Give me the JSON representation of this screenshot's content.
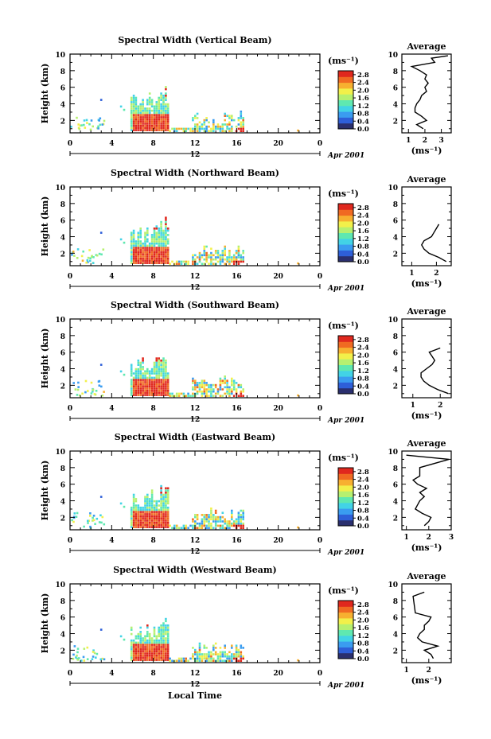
{
  "figure": {
    "xlabel": "Local Time",
    "x_ticks": [
      "0",
      "4",
      "8",
      "12",
      "16",
      "20",
      "0"
    ],
    "date_day": "12",
    "date_label": "Apr 2001",
    "y_label": "Height (km)",
    "y_ticks": [
      "2",
      "4",
      "6",
      "8",
      "10"
    ],
    "colorbar_unit": "(ms⁻¹)",
    "colorbar_ticks": [
      "0.0",
      "0.4",
      "0.8",
      "1.2",
      "1.6",
      "2.0",
      "2.4",
      "2.8"
    ],
    "average_title": "Average",
    "average_xlabel": "(ms⁻¹)"
  },
  "colors": {
    "colormap": [
      "#2a2f6e",
      "#2e5fd8",
      "#3a9cf0",
      "#42d3e6",
      "#5fe8b0",
      "#b6f070",
      "#f2f04a",
      "#f7b030",
      "#f06a22",
      "#e0281e"
    ]
  },
  "chart_data": [
    {
      "type": "heatmap",
      "title": "Spectral Width (Vertical Beam)",
      "xlim": [
        0,
        24
      ],
      "ylim": [
        0.5,
        10
      ],
      "clim": [
        0,
        3.0
      ],
      "summary_profile": {
        "type": "line",
        "title": "Average",
        "x_ticks": [
          "1",
          "2",
          "3"
        ],
        "xlim": [
          0.6,
          3.6
        ],
        "height_km": [
          1.0,
          1.5,
          2.0,
          2.5,
          3.0,
          3.5,
          4.0,
          4.5,
          5.0,
          5.5,
          6.0,
          6.5,
          7.0,
          7.5,
          8.0,
          8.5,
          9.0,
          9.5,
          9.8
        ],
        "value_ms": [
          1.9,
          1.5,
          2.1,
          1.8,
          1.4,
          1.4,
          1.5,
          1.7,
          1.8,
          2.1,
          2.0,
          2.2,
          2.0,
          2.1,
          1.7,
          1.2,
          2.6,
          2.4,
          3.4
        ]
      }
    },
    {
      "type": "heatmap",
      "title": "Spectral Width (Northward Beam)",
      "xlim": [
        0,
        24
      ],
      "ylim": [
        0.5,
        10
      ],
      "clim": [
        0,
        3.0
      ],
      "summary_profile": {
        "type": "line",
        "title": "Average",
        "x_ticks": [
          "1",
          "2"
        ],
        "xlim": [
          0.6,
          2.6
        ],
        "height_km": [
          1.0,
          1.5,
          2.0,
          2.5,
          3.0,
          3.5,
          4.0,
          4.5,
          5.0,
          5.5
        ],
        "value_ms": [
          2.4,
          2.1,
          1.7,
          1.5,
          1.4,
          1.5,
          1.8,
          1.9,
          2.0,
          2.1
        ]
      }
    },
    {
      "type": "heatmap",
      "title": "Spectral Width (Southward Beam)",
      "xlim": [
        0,
        24
      ],
      "ylim": [
        0.5,
        10
      ],
      "clim": [
        0,
        3.0
      ],
      "summary_profile": {
        "type": "line",
        "title": "Average",
        "x_ticks": [
          "1",
          "2"
        ],
        "xlim": [
          0.6,
          2.4
        ],
        "height_km": [
          1.0,
          1.5,
          2.0,
          2.5,
          3.0,
          3.5,
          4.0,
          4.5,
          5.0,
          5.5,
          6.0,
          6.5
        ],
        "value_ms": [
          2.3,
          1.9,
          1.6,
          1.4,
          1.3,
          1.3,
          1.5,
          1.7,
          1.8,
          1.7,
          1.6,
          2.0
        ]
      }
    },
    {
      "type": "heatmap",
      "title": "Spectral Width (Eastward Beam)",
      "xlim": [
        0,
        24
      ],
      "ylim": [
        0.5,
        10
      ],
      "clim": [
        0,
        3.0
      ],
      "summary_profile": {
        "type": "line",
        "title": "Average",
        "x_ticks": [
          "1",
          "2",
          "3"
        ],
        "xlim": [
          0.8,
          3.0
        ],
        "height_km": [
          1.0,
          1.5,
          2.0,
          2.5,
          3.0,
          3.5,
          4.0,
          4.5,
          5.0,
          5.5,
          6.0,
          6.5,
          7.0,
          8.0,
          9.0,
          9.5
        ],
        "value_ms": [
          1.8,
          2.0,
          2.1,
          1.7,
          1.4,
          1.5,
          1.6,
          1.8,
          1.6,
          1.9,
          1.5,
          1.3,
          1.6,
          1.6,
          2.9,
          1.0
        ]
      }
    },
    {
      "type": "heatmap",
      "title": "Spectral Width (Westward Beam)",
      "xlim": [
        0,
        24
      ],
      "ylim": [
        0.5,
        10
      ],
      "clim": [
        0,
        3.0
      ],
      "summary_profile": {
        "type": "line",
        "title": "Average",
        "x_ticks": [
          "1",
          "2"
        ],
        "xlim": [
          0.8,
          3.0
        ],
        "height_km": [
          1.0,
          1.5,
          2.0,
          2.5,
          3.0,
          3.5,
          4.0,
          4.5,
          5.0,
          5.5,
          6.0,
          6.5,
          8.5,
          9.0
        ],
        "value_ms": [
          2.2,
          2.1,
          1.8,
          2.4,
          1.7,
          1.5,
          1.6,
          1.8,
          1.8,
          2.0,
          2.1,
          1.4,
          1.3,
          1.8
        ]
      }
    }
  ]
}
